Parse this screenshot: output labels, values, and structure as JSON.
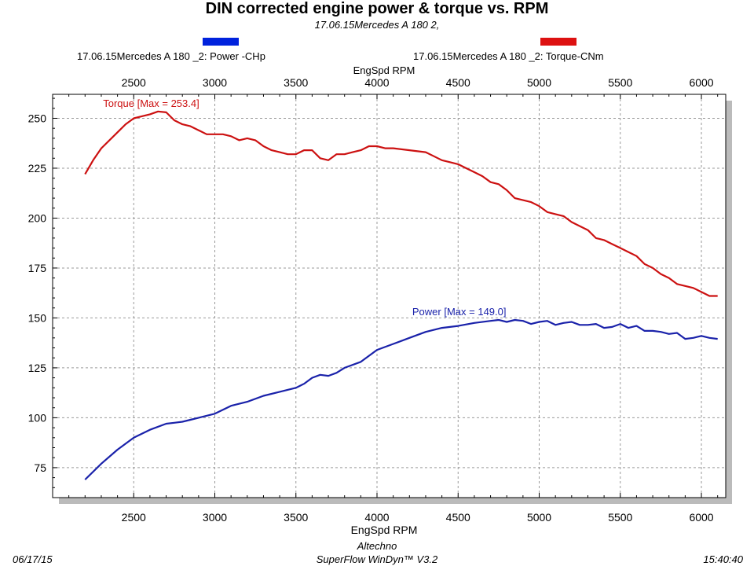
{
  "header": {
    "title": "DIN corrected engine power & torque vs. RPM",
    "subtitle": "17.06.15Mercedes A 180 2,"
  },
  "legend": [
    {
      "label": "17.06.15Mercedes A 180 _2: Power -CHp",
      "color": "#0022dd"
    },
    {
      "label": "17.06.15Mercedes A 180 _2: Torque-CNm",
      "color": "#dd1111"
    }
  ],
  "footer": {
    "date": "06/17/15",
    "company": "Altechno",
    "software": "SuperFlow WinDyn™ V3.2",
    "time": "15:40:40"
  },
  "chart_data": {
    "type": "line",
    "xlabel": "EngSpd RPM",
    "xlim": [
      2000,
      6150
    ],
    "ylim": [
      60,
      262
    ],
    "xticks": [
      2500,
      3000,
      3500,
      4000,
      4500,
      5000,
      5500,
      6000
    ],
    "yticks": [
      75,
      100,
      125,
      150,
      175,
      200,
      225,
      250
    ],
    "grid": true,
    "series": [
      {
        "name": "Power -CHp",
        "color": "#1a22aa",
        "annotation": "Power  [Max = 149.0]",
        "x": [
          2200,
          2300,
          2400,
          2500,
          2600,
          2700,
          2750,
          2800,
          2850,
          2900,
          3000,
          3100,
          3200,
          3300,
          3400,
          3500,
          3550,
          3600,
          3650,
          3700,
          3750,
          3800,
          3900,
          4000,
          4100,
          4200,
          4300,
          4400,
          4500,
          4600,
          4700,
          4750,
          4800,
          4850,
          4900,
          4950,
          5000,
          5050,
          5100,
          5150,
          5200,
          5250,
          5300,
          5350,
          5400,
          5450,
          5500,
          5550,
          5600,
          5650,
          5700,
          5750,
          5800,
          5850,
          5900,
          5950,
          6000,
          6050,
          6100
        ],
        "values": [
          69,
          77,
          84,
          90,
          94,
          97,
          97.5,
          98,
          99,
          100,
          102,
          106,
          108,
          111,
          113,
          115,
          117,
          120,
          121.5,
          121,
          122.5,
          125,
          128,
          134,
          137,
          140,
          143,
          145,
          146,
          147.5,
          148.5,
          149,
          148,
          149,
          148.5,
          147,
          148,
          148.5,
          146.5,
          147.5,
          148,
          146.5,
          146.5,
          147,
          145,
          145.5,
          147,
          145,
          146,
          143.5,
          143.5,
          143,
          142,
          142.5,
          139.5,
          140,
          141,
          140,
          139.5
        ]
      },
      {
        "name": "Torque-CNm",
        "color": "#cc1111",
        "annotation": "Torque [Max = 253.4]",
        "x": [
          2200,
          2250,
          2300,
          2400,
          2450,
          2500,
          2550,
          2600,
          2650,
          2700,
          2750,
          2800,
          2850,
          2900,
          2950,
          3000,
          3050,
          3100,
          3150,
          3200,
          3250,
          3300,
          3350,
          3400,
          3450,
          3500,
          3550,
          3600,
          3650,
          3700,
          3750,
          3800,
          3850,
          3900,
          3950,
          4000,
          4050,
          4100,
          4200,
          4300,
          4350,
          4400,
          4450,
          4500,
          4550,
          4600,
          4650,
          4700,
          4750,
          4800,
          4850,
          4900,
          4950,
          5000,
          5050,
          5100,
          5150,
          5200,
          5250,
          5300,
          5350,
          5400,
          5450,
          5500,
          5550,
          5600,
          5650,
          5700,
          5750,
          5800,
          5850,
          5900,
          5950,
          6000,
          6050,
          6100
        ],
        "values": [
          222,
          229,
          235,
          243,
          247,
          250,
          251,
          252,
          253.4,
          253,
          249,
          247,
          246,
          244,
          242,
          242,
          242,
          241,
          239,
          240,
          239,
          236,
          234,
          233,
          232,
          232,
          234,
          234,
          230,
          229,
          232,
          232,
          233,
          234,
          236,
          236,
          235,
          235,
          234,
          233,
          231,
          229,
          228,
          227,
          225,
          223,
          221,
          218,
          217,
          214,
          210,
          209,
          208,
          206,
          203,
          202,
          201,
          198,
          196,
          194,
          190,
          189,
          187,
          185,
          183,
          181,
          177,
          175,
          172,
          170,
          167,
          166,
          165,
          163,
          161,
          161
        ]
      }
    ]
  }
}
